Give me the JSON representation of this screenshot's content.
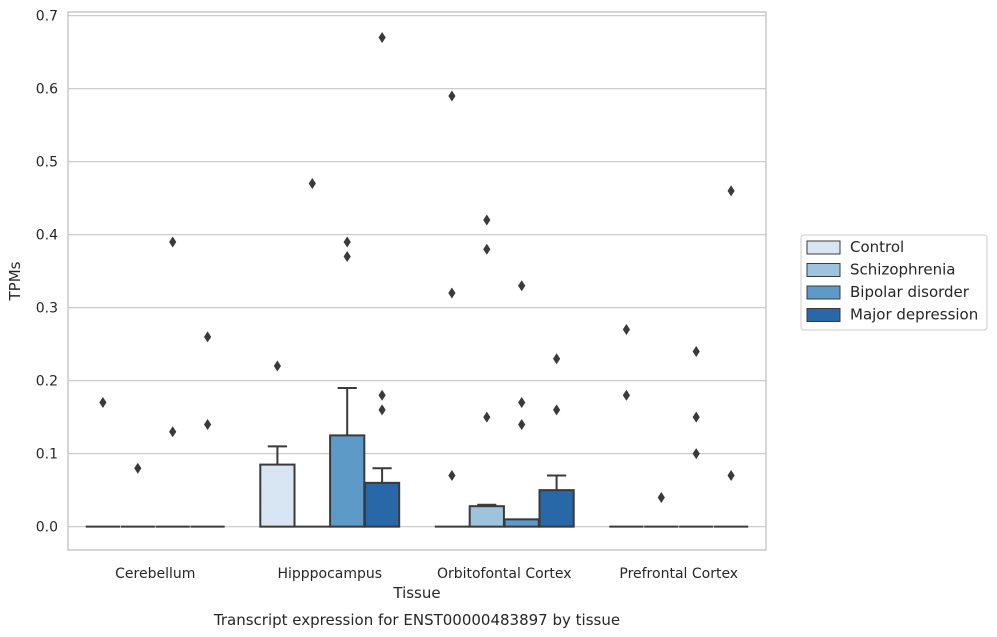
{
  "chart_data": {
    "type": "box",
    "caption": "Transcript expression for ENST00000483897 by tissue",
    "xlabel": "Tissue",
    "ylabel": "TPMs",
    "ylim": [
      -0.032,
      0.705
    ],
    "yticks": [
      0.0,
      0.1,
      0.2,
      0.3,
      0.4,
      0.5,
      0.6,
      0.7
    ],
    "ytick_labels": [
      "0.0",
      "0.1",
      "0.2",
      "0.3",
      "0.4",
      "0.5",
      "0.6",
      "0.7"
    ],
    "grid": true,
    "legend_position": "right",
    "categories": [
      "Cerebellum",
      "Hipppocampus",
      "Orbitofontal Cortex",
      "Prefrontal Cortex"
    ],
    "series": [
      {
        "name": "Control",
        "color": "#d8e6f3",
        "boxes": [
          {
            "q1": 0,
            "median": 0,
            "q3": 0,
            "whisker_high": 0,
            "outliers": [
              0.17
            ]
          },
          {
            "q1": 0,
            "median": 0,
            "q3": 0.085,
            "whisker_high": 0.11,
            "outliers": [
              0.22
            ]
          },
          {
            "q1": 0,
            "median": 0,
            "q3": 0,
            "whisker_high": 0,
            "outliers": [
              0.07,
              0.32,
              0.59
            ]
          },
          {
            "q1": 0,
            "median": 0,
            "q3": 0,
            "whisker_high": 0,
            "outliers": [
              0.18,
              0.27
            ]
          }
        ]
      },
      {
        "name": "Schizophrenia",
        "color": "#9ec4dd",
        "boxes": [
          {
            "q1": 0,
            "median": 0,
            "q3": 0,
            "whisker_high": 0,
            "outliers": [
              0.08
            ]
          },
          {
            "q1": 0,
            "median": 0,
            "q3": 0,
            "whisker_high": 0,
            "outliers": [
              0.47
            ]
          },
          {
            "q1": 0,
            "median": 0,
            "q3": 0.028,
            "whisker_high": 0.03,
            "outliers": [
              0.15,
              0.38,
              0.42
            ]
          },
          {
            "q1": 0,
            "median": 0,
            "q3": 0,
            "whisker_high": 0,
            "outliers": [
              0.04
            ]
          }
        ]
      },
      {
        "name": "Bipolar disorder",
        "color": "#5e9ac8",
        "boxes": [
          {
            "q1": 0,
            "median": 0,
            "q3": 0,
            "whisker_high": 0,
            "outliers": [
              0.13,
              0.39
            ]
          },
          {
            "q1": 0,
            "median": 0,
            "q3": 0.125,
            "whisker_high": 0.19,
            "outliers": [
              0.37,
              0.39
            ]
          },
          {
            "q1": 0,
            "median": 0,
            "q3": 0.01,
            "whisker_high": 0.01,
            "outliers": [
              0.14,
              0.17,
              0.33
            ]
          },
          {
            "q1": 0,
            "median": 0,
            "q3": 0,
            "whisker_high": 0,
            "outliers": [
              0.1,
              0.15,
              0.24
            ]
          }
        ]
      },
      {
        "name": "Major depression",
        "color": "#2867a8",
        "boxes": [
          {
            "q1": 0,
            "median": 0,
            "q3": 0,
            "whisker_high": 0,
            "outliers": [
              0.14,
              0.26
            ]
          },
          {
            "q1": 0,
            "median": 0,
            "q3": 0.06,
            "whisker_high": 0.08,
            "outliers": [
              0.16,
              0.18,
              0.67
            ]
          },
          {
            "q1": 0,
            "median": 0,
            "q3": 0.05,
            "whisker_high": 0.07,
            "outliers": [
              0.16,
              0.23
            ]
          },
          {
            "q1": 0,
            "median": 0,
            "q3": 0,
            "whisker_high": 0,
            "outliers": [
              0.07,
              0.46
            ]
          }
        ]
      }
    ]
  }
}
